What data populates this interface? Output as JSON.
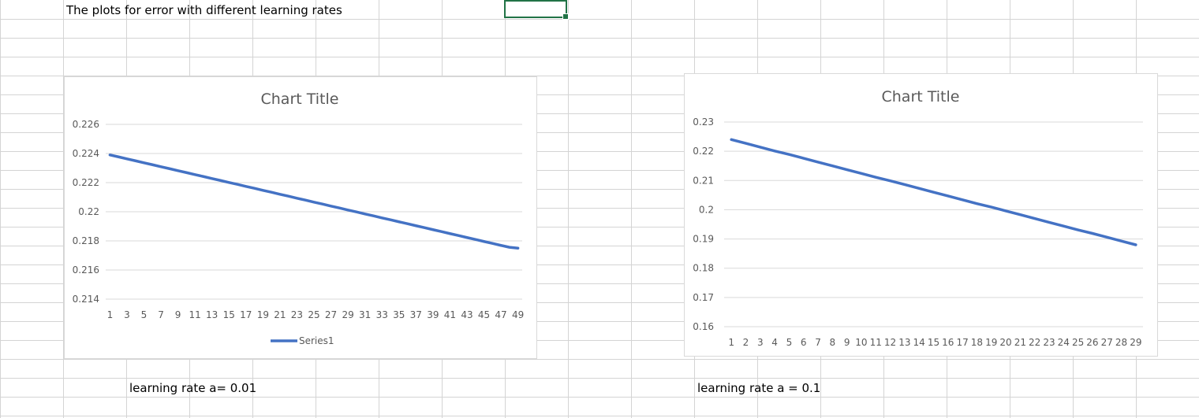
{
  "sheet": {
    "heading": "The plots for error with different learning rates",
    "label_left": "learning rate a= 0.01",
    "label_right": "learning rate a = 0.1",
    "gridline_color": "#d4d4d4",
    "selection_color": "#217346"
  },
  "chart_data": [
    {
      "type": "line",
      "title": "Chart Title",
      "xlabel": "",
      "ylabel": "",
      "x": [
        1,
        2,
        3,
        4,
        5,
        6,
        7,
        8,
        9,
        10,
        11,
        12,
        13,
        14,
        15,
        16,
        17,
        18,
        19,
        20,
        21,
        22,
        23,
        24,
        25,
        26,
        27,
        28,
        29,
        30,
        31,
        32,
        33,
        34,
        35,
        36,
        37,
        38,
        39,
        40,
        41,
        42,
        43,
        44,
        45,
        46,
        47,
        48,
        49
      ],
      "x_tick_labels": [
        "1",
        "3",
        "5",
        "7",
        "9",
        "11",
        "13",
        "15",
        "17",
        "19",
        "21",
        "23",
        "25",
        "27",
        "29",
        "31",
        "33",
        "35",
        "37",
        "39",
        "41",
        "43",
        "45",
        "47",
        "49"
      ],
      "ylim": [
        0.214,
        0.226
      ],
      "y_tick_labels": [
        "0.214",
        "0.216",
        "0.218",
        "0.22",
        "0.222",
        "0.224",
        "0.226"
      ],
      "grid": true,
      "legend": "bottom",
      "series": [
        {
          "name": "Series1",
          "color": "#4472c4",
          "values": [
            0.2239,
            0.22377,
            0.22363,
            0.2235,
            0.22336,
            0.22323,
            0.22309,
            0.22296,
            0.22282,
            0.22269,
            0.22255,
            0.22242,
            0.22228,
            0.22215,
            0.22201,
            0.22188,
            0.22174,
            0.22161,
            0.22147,
            0.22134,
            0.2212,
            0.22107,
            0.22093,
            0.2208,
            0.22066,
            0.22053,
            0.22039,
            0.22026,
            0.22012,
            0.21999,
            0.21985,
            0.21972,
            0.21958,
            0.21945,
            0.21931,
            0.21918,
            0.21904,
            0.21891,
            0.21877,
            0.21864,
            0.2185,
            0.21837,
            0.21823,
            0.2181,
            0.21796,
            0.21783,
            0.21769,
            0.21756,
            0.2175
          ]
        }
      ]
    },
    {
      "type": "line",
      "title": "Chart Title",
      "xlabel": "",
      "ylabel": "",
      "x": [
        1,
        2,
        3,
        4,
        5,
        6,
        7,
        8,
        9,
        10,
        11,
        12,
        13,
        14,
        15,
        16,
        17,
        18,
        19,
        20,
        21,
        22,
        23,
        24,
        25,
        26,
        27,
        28,
        29
      ],
      "x_tick_labels": [
        "1",
        "2",
        "3",
        "4",
        "5",
        "6",
        "7",
        "8",
        "9",
        "10",
        "11",
        "12",
        "13",
        "14",
        "15",
        "16",
        "17",
        "18",
        "19",
        "20",
        "21",
        "22",
        "23",
        "24",
        "25",
        "26",
        "27",
        "28",
        "29"
      ],
      "ylim": [
        0.16,
        0.23
      ],
      "y_tick_labels": [
        "0.16",
        "0.17",
        "0.18",
        "0.19",
        "0.2",
        "0.21",
        "0.22",
        "0.23"
      ],
      "grid": true,
      "legend": "none",
      "series": [
        {
          "color": "#4472c4",
          "values": [
            0.224,
            0.2227,
            0.2214,
            0.2201,
            0.2189,
            0.2176,
            0.2163,
            0.215,
            0.2137,
            0.2124,
            0.2111,
            0.2099,
            0.2086,
            0.2073,
            0.206,
            0.2047,
            0.2034,
            0.2021,
            0.2009,
            0.1996,
            0.1983,
            0.197,
            0.1957,
            0.1944,
            0.1931,
            0.1919,
            0.1906,
            0.1893,
            0.188
          ]
        }
      ]
    }
  ]
}
